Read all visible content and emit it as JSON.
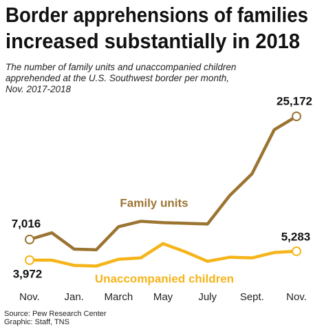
{
  "chart_data": {
    "type": "line",
    "title": "Border apprehensions of families increased substantially in 2018",
    "subtitle": "The number of family units and unaccompanied children apprehended at the U.S. Southwest border per month, Nov. 2017-2018",
    "categories": [
      "Nov.",
      null,
      "Jan.",
      null,
      "March",
      null,
      "May",
      null,
      "July",
      null,
      "Sept.",
      null,
      "Nov."
    ],
    "series": [
      {
        "name": "Family units",
        "color": "#9b7432",
        "values": [
          7016,
          8000,
          5600,
          5500,
          8900,
          9700,
          9500,
          9400,
          9300,
          13500,
          16700,
          23200,
          25172
        ],
        "value_labels": [
          "7,016",
          null,
          null,
          null,
          null,
          null,
          null,
          null,
          null,
          null,
          null,
          null,
          "25,172"
        ]
      },
      {
        "name": "Unaccompanied children",
        "color": "#f5b41a",
        "values": [
          3972,
          3970,
          3200,
          3100,
          4100,
          4300,
          6400,
          5200,
          3800,
          4400,
          4300,
          5100,
          5283
        ],
        "value_labels": [
          "3,972",
          null,
          null,
          null,
          null,
          null,
          null,
          null,
          null,
          null,
          null,
          null,
          "5,283"
        ]
      }
    ],
    "ylim": [
      0,
      27000
    ],
    "source": "Source: Pew Research Center",
    "credit": "Graphic: Staff, TNS"
  }
}
